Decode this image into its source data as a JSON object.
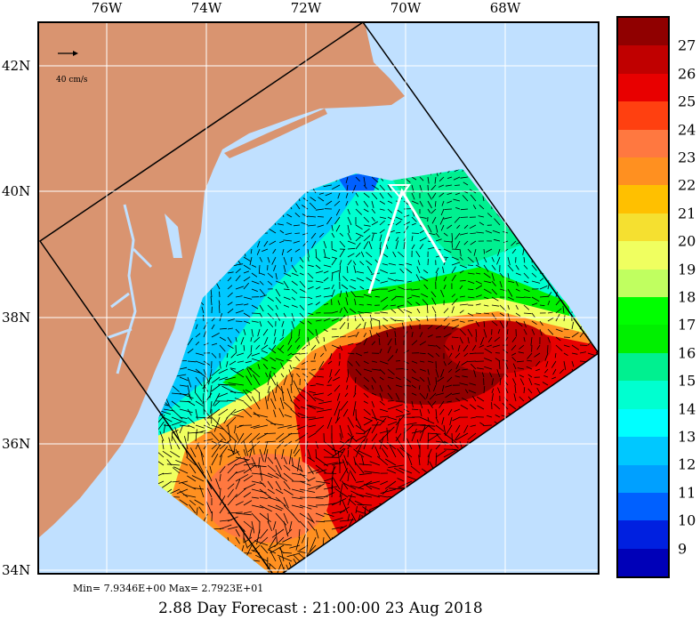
{
  "map": {
    "lon_labels": [
      "76W",
      "74W",
      "72W",
      "70W",
      "68W"
    ],
    "lat_labels": [
      "42N",
      "40N",
      "38N",
      "36N",
      "34N"
    ],
    "lon_values": [
      -76,
      -74,
      -72,
      -70,
      -68
    ],
    "lat_values": [
      42,
      40,
      38,
      36,
      34
    ],
    "scale_vector_label": "40 cm/s",
    "colors": {
      "land": "#d99470",
      "ocean": "#c0e0ff",
      "grid": "#ffffff"
    }
  },
  "colorbar": {
    "labels": [
      "27",
      "26",
      "25",
      "24",
      "23",
      "22",
      "21",
      "20",
      "19",
      "18",
      "17",
      "16",
      "15",
      "14",
      "13",
      "12",
      "11",
      "10",
      "9"
    ],
    "colors": [
      "#900000",
      "#c00000",
      "#e80000",
      "#ff4010",
      "#ff7840",
      "#ff9020",
      "#ffc000",
      "#f5e030",
      "#f0ff60",
      "#c0ff60",
      "#00ff00",
      "#00f000",
      "#00f090",
      "#00ffd0",
      "#00ffff",
      "#00c8ff",
      "#00a0ff",
      "#0060ff",
      "#0020e0",
      "#0000b8"
    ]
  },
  "minmax": "Min= 7.9346E+00  Max= 2.7923E+01",
  "title": "2.88 Day Forecast : 21:00:00  23 Aug 2018"
}
